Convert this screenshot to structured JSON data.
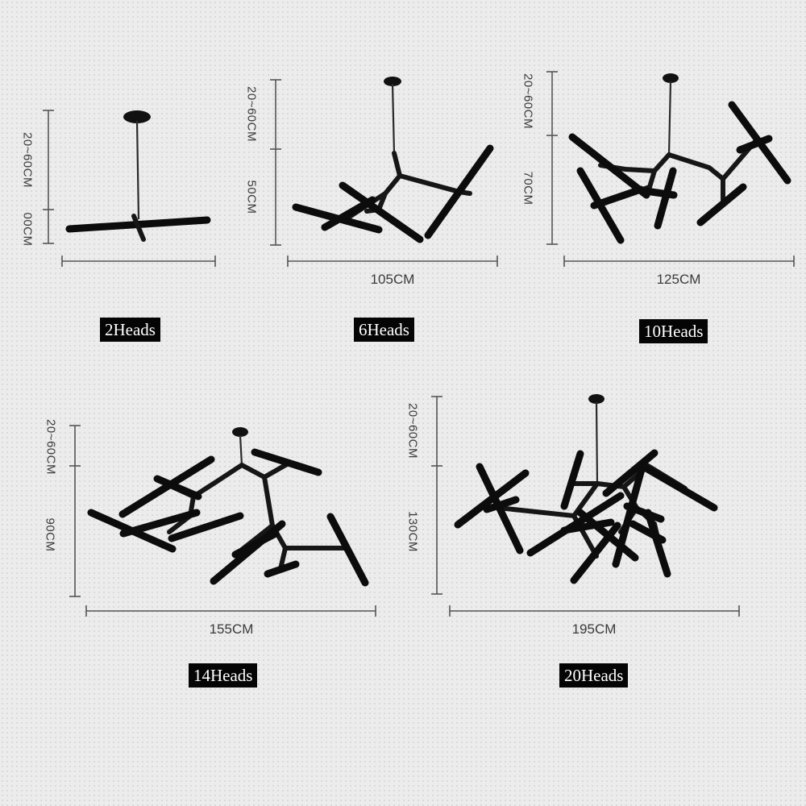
{
  "variants": [
    {
      "heads_label": "2Heads",
      "cord_label": "20~60CM",
      "height_label": "00CM",
      "width_label": ""
    },
    {
      "heads_label": "6Heads",
      "cord_label": "20~60CM",
      "height_label": "50CM",
      "width_label": "105CM"
    },
    {
      "heads_label": "10Heads",
      "cord_label": "20~60CM",
      "height_label": "70CM",
      "width_label": "125CM"
    },
    {
      "heads_label": "14Heads",
      "cord_label": "20~60CM",
      "height_label": "90CM",
      "width_label": "155CM"
    },
    {
      "heads_label": "20Heads",
      "cord_label": "20~60CM",
      "height_label": "130CM",
      "width_label": "195CM"
    }
  ],
  "colors": {
    "background": "#ececec",
    "fixture": "#111111",
    "dimension_line": "#555555",
    "tag_bg": "#050505",
    "tag_text": "#ffffff"
  },
  "icon_names": [
    "chandelier-2-heads-icon",
    "chandelier-6-heads-icon",
    "chandelier-10-heads-icon",
    "chandelier-14-heads-icon",
    "chandelier-20-heads-icon"
  ]
}
